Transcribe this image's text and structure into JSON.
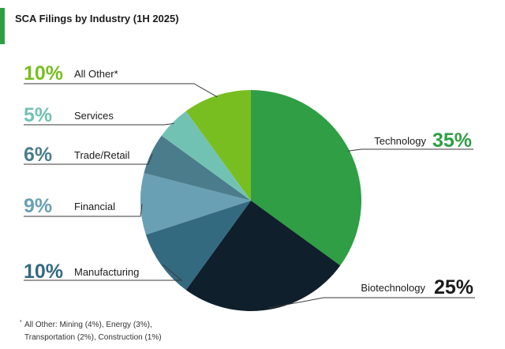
{
  "chart_data": {
    "type": "pie",
    "title": "SCA Filings by Industry (1H 2025)",
    "unit": "%",
    "slices": [
      {
        "label": "Technology",
        "value": 35,
        "display": "35%",
        "color": "#2f9e44"
      },
      {
        "label": "Biotechnology",
        "value": 25,
        "display": "25%",
        "color": "#0f1f2b"
      },
      {
        "label": "Manufacturing",
        "value": 10,
        "display": "10%",
        "color": "#336a80"
      },
      {
        "label": "Financial",
        "value": 9,
        "display": "9%",
        "color": "#6aa0b4"
      },
      {
        "label": "Trade/Retail",
        "value": 6,
        "display": "6%",
        "color": "#4a7c8c"
      },
      {
        "label": "Services",
        "value": 5,
        "display": "5%",
        "color": "#72c2b4"
      },
      {
        "label": "All Other*",
        "value": 10,
        "display": "10%",
        "color": "#78be20"
      }
    ],
    "footnote": {
      "marker": "*",
      "line1": "All Other: Mining (4%), Energy (3%),",
      "line2": "Transportation (2%), Construction (1%)"
    }
  },
  "colors": {
    "accent_bar": "#2f9e44",
    "line": "#3a3a3a",
    "pct_dark": "#1b1b1b"
  }
}
